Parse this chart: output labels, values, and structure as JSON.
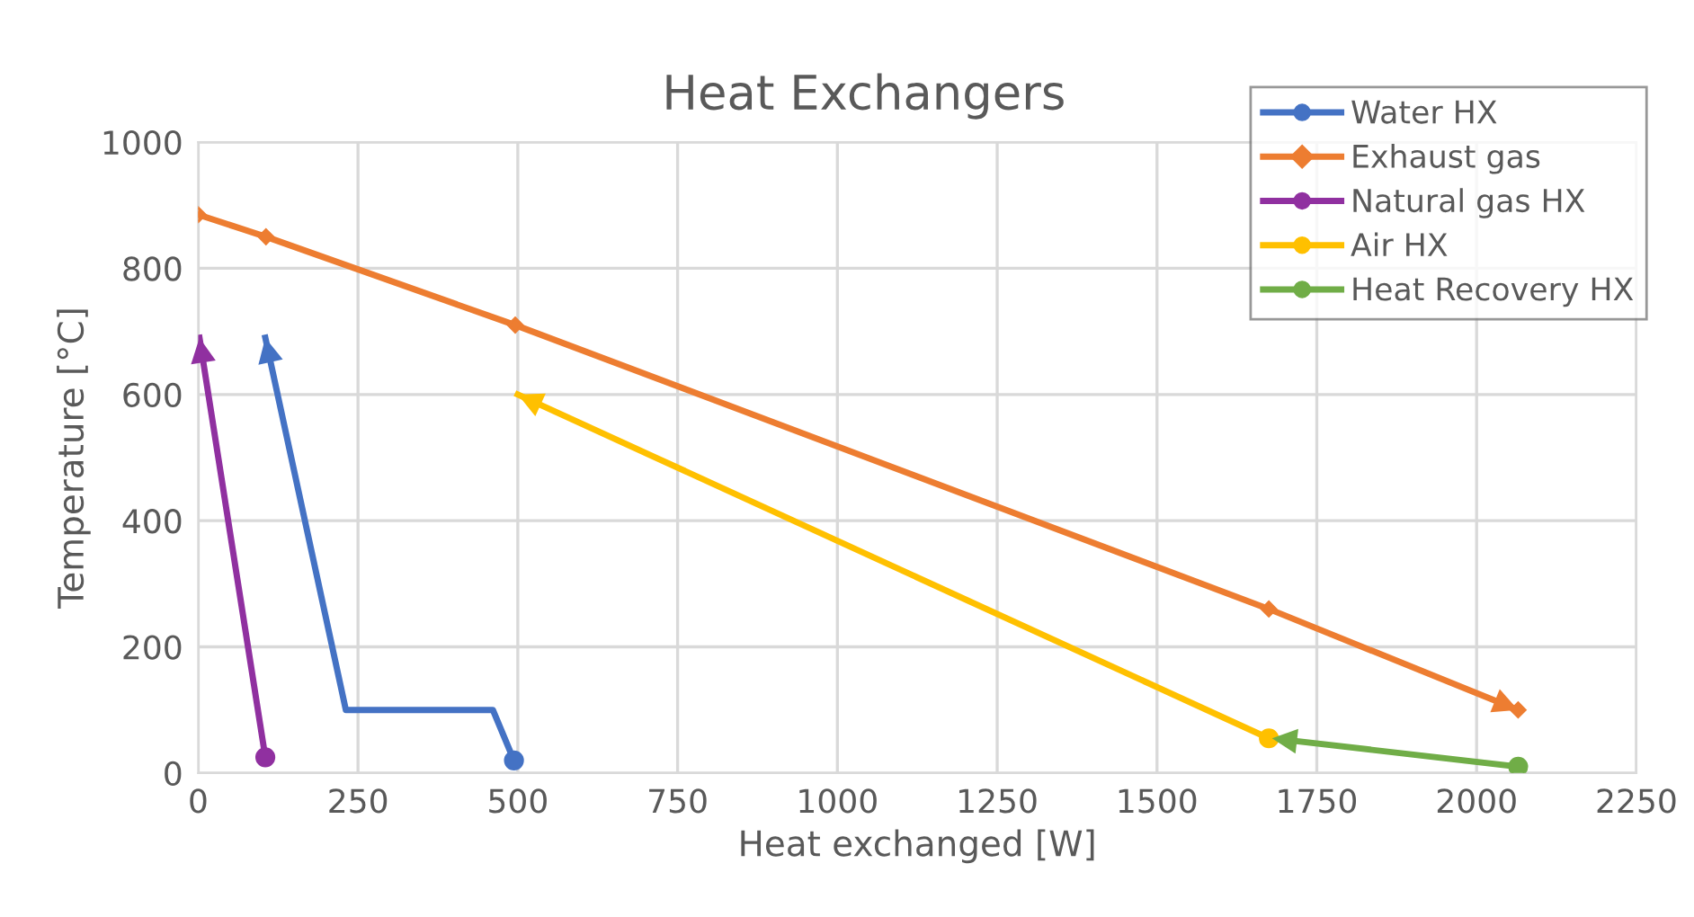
{
  "chart_data": {
    "type": "line",
    "title": "Heat Exchangers",
    "xlabel": "Heat exchanged [W]",
    "ylabel": "Temperature [°C]",
    "xlim": [
      0,
      2250
    ],
    "xticks": [
      0,
      250,
      500,
      750,
      1000,
      1250,
      1500,
      1750,
      2000,
      2250
    ],
    "ylim": [
      0,
      1000
    ],
    "yticks": [
      0,
      200,
      400,
      600,
      800,
      1000
    ],
    "grid": true,
    "legend": "top right",
    "series": [
      {
        "name": "Water HX",
        "color": "#4472c4",
        "x": [
          494,
          461,
          231,
          105
        ],
        "values": [
          20,
          100,
          100,
          690
        ]
      },
      {
        "name": "Exhaust gas",
        "color": "#ed7d31",
        "marker": "diamond",
        "x": [
          0,
          106,
          496,
          1675,
          2065
        ],
        "values": [
          885,
          850,
          710,
          260,
          100
        ]
      },
      {
        "name": "Natural gas HX",
        "color": "#9030a0",
        "x": [
          105,
          2
        ],
        "values": [
          25,
          690
        ]
      },
      {
        "name": "Air HX",
        "color": "#ffc000",
        "x": [
          1675,
          500
        ],
        "values": [
          55,
          600
        ]
      },
      {
        "name": "Heat Recovery HX",
        "color": "#70ad47",
        "x": [
          2065,
          1680
        ],
        "values": [
          10,
          55
        ]
      },
      {
        "type": "scatter",
        "color": "#4472c4",
        "marker": "circle",
        "x": [
          494
        ],
        "values": [
          20
        ]
      },
      {
        "type": "scatter",
        "color": "#9030a0",
        "marker": "circle",
        "x": [
          105
        ],
        "values": [
          25
        ]
      },
      {
        "type": "scatter",
        "color": "#ffc000",
        "marker": "circle",
        "x": [
          1675
        ],
        "values": [
          55
        ]
      },
      {
        "type": "scatter",
        "color": "#70ad47",
        "marker": "circle",
        "x": [
          2065
        ],
        "values": [
          10
        ]
      }
    ]
  }
}
